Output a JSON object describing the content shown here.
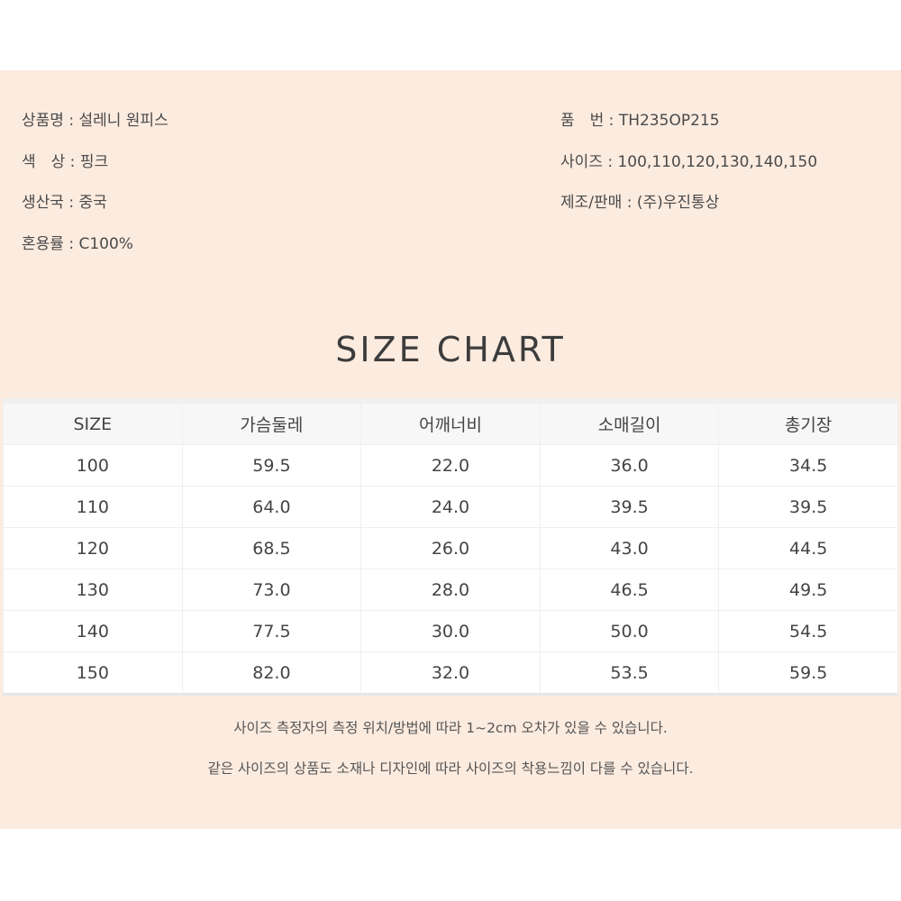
{
  "product_info": {
    "left": [
      {
        "label": "상품명",
        "value": "설레니 원피스"
      },
      {
        "label": "색　상",
        "value": "핑크"
      },
      {
        "label": "생산국",
        "value": "중국"
      },
      {
        "label": "혼용률",
        "value": "C100%"
      }
    ],
    "right": [
      {
        "label": "품　번",
        "value": "TH235OP215"
      },
      {
        "label": "사이즈",
        "value": "100,110,120,130,140,150"
      },
      {
        "label": "제조/판매",
        "value": "(주)우진통상"
      }
    ]
  },
  "size_chart": {
    "title": "SIZE CHART",
    "headers": [
      "SIZE",
      "가슴둘레",
      "어깨너비",
      "소매길이",
      "총기장"
    ],
    "rows": [
      [
        "100",
        "59.5",
        "22.0",
        "36.0",
        "34.5"
      ],
      [
        "110",
        "64.0",
        "24.0",
        "39.5",
        "39.5"
      ],
      [
        "120",
        "68.5",
        "26.0",
        "43.0",
        "44.5"
      ],
      [
        "130",
        "73.0",
        "28.0",
        "46.5",
        "49.5"
      ],
      [
        "140",
        "77.5",
        "30.0",
        "50.0",
        "54.5"
      ],
      [
        "150",
        "82.0",
        "32.0",
        "53.5",
        "59.5"
      ]
    ]
  },
  "notes": [
    "사이즈 측정자의 측정 위치/방법에 따라 1~2cm 오차가 있을 수 있습니다.",
    "같은 사이즈의 상품도 소재나 디자인에 따라 사이즈의 착용느낌이 다를 수 있습니다."
  ]
}
